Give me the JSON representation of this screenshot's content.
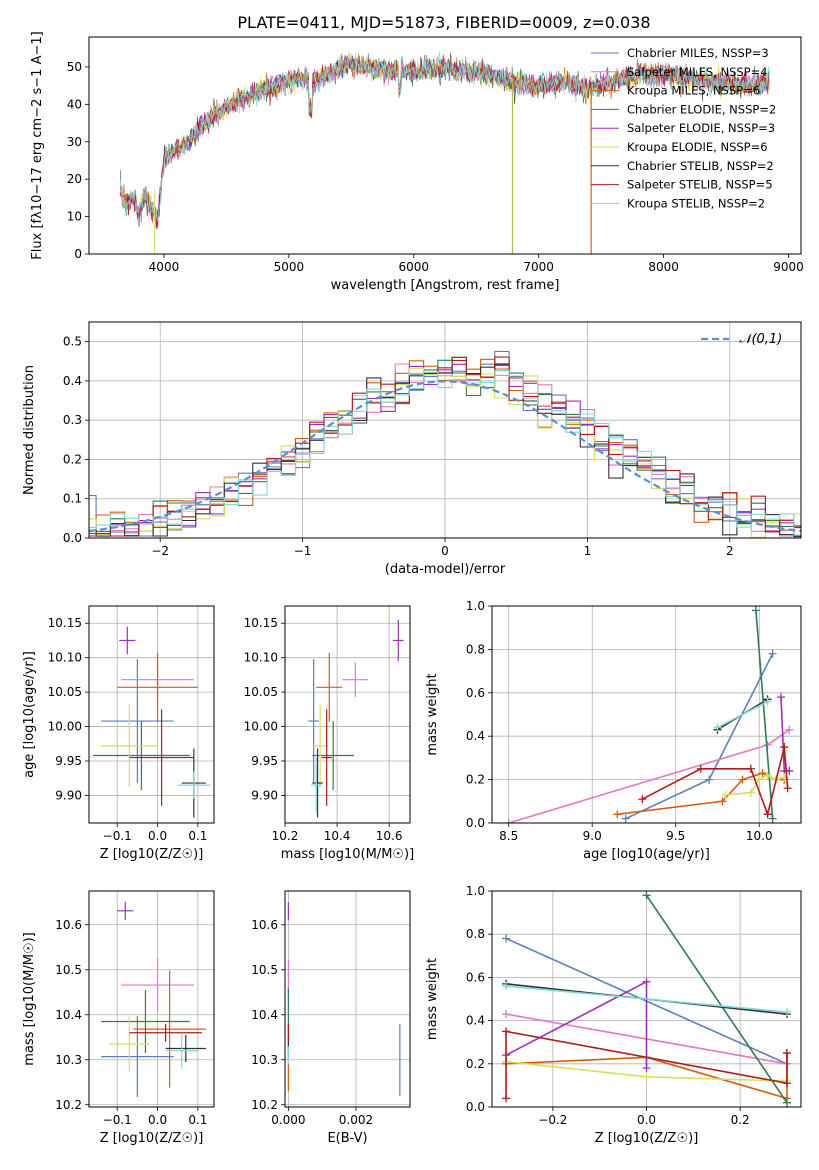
{
  "figure": {
    "title": "PLATE=0411, MJD=51873, FIBERID=0009, z=0.038"
  },
  "chart_data": [
    {
      "id": "spectrum",
      "type": "line",
      "title": "PLATE=0411, MJD=51873, FIBERID=0009, z=0.038",
      "xlabel": "wavelength [Angstrom, rest frame]",
      "ylabel": "Flux [fλ10−17 erg cm−2 s−1 A−1]",
      "xlim": [
        3400,
        9100
      ],
      "ylim": [
        0,
        58
      ],
      "xticks": [
        4000,
        5000,
        6000,
        7000,
        8000,
        9000
      ],
      "yticks": [
        0,
        10,
        20,
        30,
        40,
        50
      ],
      "grid": false,
      "legend": "top-right",
      "continuum": {
        "x": [
          3650,
          3700,
          3750,
          3800,
          3850,
          3900,
          3950,
          4000,
          4100,
          4200,
          4300,
          4400,
          4500,
          4600,
          4700,
          4800,
          4900,
          5000,
          5100,
          5200,
          5300,
          5400,
          5500,
          5600,
          5800,
          6000,
          6200,
          6400,
          6600,
          6800,
          7000,
          7200,
          7400,
          7600,
          7800,
          8000,
          8200,
          8400,
          8600,
          8850
        ],
        "y": [
          17,
          13,
          15,
          11,
          16,
          12,
          9,
          25,
          28,
          30,
          34,
          37,
          39,
          41,
          42,
          44,
          45,
          46,
          47,
          46,
          48,
          50,
          51,
          50,
          49,
          49,
          50,
          49,
          48,
          46,
          45,
          46,
          44,
          46,
          48,
          48,
          47,
          46,
          45,
          46
        ]
      },
      "series": [
        {
          "name": "Chabrier MILES, NSSP=3",
          "color": "#5b7fc4"
        },
        {
          "name": "Salpeter MILES, NSSP=4",
          "color": "#e377c2"
        },
        {
          "name": "Kroupa MILES, NSSP=6",
          "color": "#d35f0e"
        },
        {
          "name": "Chabrier ELODIE, NSSP=2",
          "color": "#2e7d4f"
        },
        {
          "name": "Salpeter ELODIE, NSSP=3",
          "color": "#9b30b8"
        },
        {
          "name": "Kroupa ELODIE, NSSP=6",
          "color": "#d4e157"
        },
        {
          "name": "Chabrier STELIB, NSSP=2",
          "color": "#333333"
        },
        {
          "name": "Salpeter STELIB, NSSP=5",
          "color": "#b31b1b"
        },
        {
          "name": "Kroupa STELIB, NSSP=2",
          "color": "#80d8d8"
        }
      ]
    },
    {
      "id": "residuals",
      "type": "histogram",
      "xlabel": "(data-model)/error",
      "ylabel": "Normed distribution",
      "xlim": [
        -2.5,
        2.5
      ],
      "ylim": [
        0,
        0.55
      ],
      "xticks": [
        -2,
        -1,
        0,
        1,
        2
      ],
      "yticks": [
        0.0,
        0.1,
        0.2,
        0.3,
        0.4,
        0.5
      ],
      "grid": true,
      "legend": "top-right",
      "reference": {
        "name": "𝒩(0,1)",
        "color": "#5b8ed6"
      },
      "bin_width": 0.1
    },
    {
      "id": "age_vs_Z",
      "type": "errorbar",
      "xlabel": "Z [log10(Z/Z☉)]",
      "ylabel": "age  [log10(age/yr)]",
      "xlim": [
        -0.17,
        0.14
      ],
      "ylim": [
        9.86,
        10.175
      ],
      "xticks": [
        -0.1,
        0.0,
        0.1
      ],
      "yticks": [
        9.9,
        9.95,
        10.0,
        10.05,
        10.1,
        10.15
      ],
      "grid": true,
      "points": [
        {
          "x": -0.05,
          "y": 10.008,
          "xerr": 0.09,
          "yerr": 0.09,
          "color": "#5b7fc4"
        },
        {
          "x": 0.0,
          "y": 10.068,
          "xerr": 0.09,
          "yerr": 0.025,
          "color": "#e377c2"
        },
        {
          "x": 0.0,
          "y": 10.057,
          "xerr": 0.1,
          "yerr": 0.05,
          "color": "#d35f0e"
        },
        {
          "x": -0.04,
          "y": 9.958,
          "xerr": 0.12,
          "yerr": 0.05,
          "color": "#2e7d4f"
        },
        {
          "x": -0.075,
          "y": 10.125,
          "xerr": 0.02,
          "yerr": 0.02,
          "color": "#9b30b8"
        },
        {
          "x": -0.07,
          "y": 9.972,
          "xerr": 0.07,
          "yerr": 0.06,
          "color": "#d4e157"
        },
        {
          "x": 0.09,
          "y": 9.918,
          "xerr": 0.03,
          "yerr": 0.05,
          "color": "#333333"
        },
        {
          "x": 0.01,
          "y": 9.955,
          "xerr": 0.08,
          "yerr": 0.07,
          "color": "#b31b1b"
        },
        {
          "x": 0.09,
          "y": 9.915,
          "xerr": 0.04,
          "yerr": 0.02,
          "color": "#80d8d8"
        }
      ]
    },
    {
      "id": "age_vs_mass",
      "type": "errorbar",
      "xlabel": "mass [log10(M/M☉)]",
      "ylabel": "",
      "xlim": [
        10.2,
        10.68
      ],
      "ylim": [
        9.86,
        10.175
      ],
      "xticks": [
        10.2,
        10.4,
        10.6
      ],
      "yticks": [
        9.9,
        9.95,
        10.0,
        10.05,
        10.1,
        10.15
      ],
      "grid": true,
      "points": [
        {
          "x": 10.31,
          "y": 10.008,
          "xerr": 0.02,
          "yerr": 0.09,
          "color": "#5b7fc4"
        },
        {
          "x": 10.47,
          "y": 10.068,
          "xerr": 0.05,
          "yerr": 0.025,
          "color": "#e377c2"
        },
        {
          "x": 10.37,
          "y": 10.057,
          "xerr": 0.05,
          "yerr": 0.05,
          "color": "#d35f0e"
        },
        {
          "x": 10.385,
          "y": 9.958,
          "xerr": 0.08,
          "yerr": 0.05,
          "color": "#2e7d4f"
        },
        {
          "x": 10.635,
          "y": 10.125,
          "xerr": 0.02,
          "yerr": 0.03,
          "color": "#9b30b8"
        },
        {
          "x": 10.335,
          "y": 9.972,
          "xerr": 0.03,
          "yerr": 0.06,
          "color": "#d4e157"
        },
        {
          "x": 10.325,
          "y": 9.918,
          "xerr": 0.02,
          "yerr": 0.05,
          "color": "#333333"
        },
        {
          "x": 10.36,
          "y": 9.955,
          "xerr": 0.02,
          "yerr": 0.07,
          "color": "#b31b1b"
        },
        {
          "x": 10.32,
          "y": 9.915,
          "xerr": 0.02,
          "yerr": 0.04,
          "color": "#80d8d8"
        }
      ]
    },
    {
      "id": "weight_vs_age",
      "type": "line",
      "xlabel": "age  [log10(age/yr)]",
      "ylabel": "mass weight",
      "xlim": [
        8.4,
        10.25
      ],
      "ylim": [
        0,
        1.0
      ],
      "xticks": [
        8.5,
        9.0,
        9.5,
        10.0
      ],
      "yticks": [
        0.0,
        0.2,
        0.4,
        0.6,
        0.8,
        1.0
      ],
      "grid": true,
      "series": [
        {
          "color": "#5b7fc4",
          "x": [
            9.2,
            9.7,
            10.08
          ],
          "y": [
            0.02,
            0.2,
            0.78
          ]
        },
        {
          "color": "#e377c2",
          "x": [
            8.5,
            10.05,
            10.18
          ],
          "y": [
            0.0,
            0.36,
            0.43
          ]
        },
        {
          "color": "#d35f0e",
          "x": [
            9.15,
            9.78,
            9.9,
            10.02,
            10.1,
            10.15
          ],
          "y": [
            0.04,
            0.1,
            0.2,
            0.23,
            0.2,
            0.2
          ]
        },
        {
          "color": "#2e7d4f",
          "x": [
            9.98,
            10.08
          ],
          "y": [
            0.98,
            0.02
          ]
        },
        {
          "color": "#9b30b8",
          "x": [
            10.13,
            10.15,
            10.18
          ],
          "y": [
            0.58,
            0.24,
            0.24
          ]
        },
        {
          "color": "#d4e157",
          "x": [
            9.8,
            9.95,
            10.0,
            10.05,
            10.1,
            10.15
          ],
          "y": [
            0.13,
            0.14,
            0.2,
            0.22,
            0.2,
            0.21
          ]
        },
        {
          "color": "#333333",
          "x": [
            9.75,
            10.05
          ],
          "y": [
            0.43,
            0.57
          ]
        },
        {
          "color": "#b31b1b",
          "x": [
            9.3,
            9.65,
            9.95,
            10.05,
            10.15,
            10.17
          ],
          "y": [
            0.11,
            0.25,
            0.25,
            0.04,
            0.35,
            0.16
          ]
        },
        {
          "color": "#80d8d8",
          "x": [
            9.75,
            10.05
          ],
          "y": [
            0.44,
            0.56
          ]
        }
      ]
    },
    {
      "id": "mass_vs_Z",
      "type": "errorbar",
      "xlabel": "Z [log10(Z/Z☉)]",
      "ylabel": "mass [log10(M/M☉)]",
      "xlim": [
        -0.17,
        0.14
      ],
      "ylim": [
        10.195,
        10.675
      ],
      "xticks": [
        -0.1,
        0.0,
        0.1
      ],
      "yticks": [
        10.2,
        10.3,
        10.4,
        10.5,
        10.6
      ],
      "grid": true,
      "points": [
        {
          "x": -0.05,
          "y": 10.307,
          "xerr": 0.09,
          "yerr": 0.09,
          "color": "#5b7fc4"
        },
        {
          "x": 0.0,
          "y": 10.466,
          "xerr": 0.09,
          "yerr": 0.06,
          "color": "#e377c2"
        },
        {
          "x": 0.03,
          "y": 10.368,
          "xerr": 0.09,
          "yerr": 0.13,
          "color": "#d35f0e"
        },
        {
          "x": -0.03,
          "y": 10.385,
          "xerr": 0.11,
          "yerr": 0.07,
          "color": "#2e7d4f"
        },
        {
          "x": -0.08,
          "y": 10.631,
          "xerr": 0.02,
          "yerr": 0.02,
          "color": "#9b30b8"
        },
        {
          "x": -0.07,
          "y": 10.335,
          "xerr": 0.05,
          "yerr": 0.06,
          "color": "#d4e157"
        },
        {
          "x": 0.07,
          "y": 10.325,
          "xerr": 0.05,
          "yerr": 0.03,
          "color": "#333333"
        },
        {
          "x": 0.02,
          "y": 10.36,
          "xerr": 0.09,
          "yerr": 0.02,
          "color": "#b31b1b"
        },
        {
          "x": 0.06,
          "y": 10.32,
          "xerr": 0.04,
          "yerr": 0.04,
          "color": "#80d8d8"
        }
      ]
    },
    {
      "id": "mass_vs_ebv",
      "type": "errorbar",
      "xlabel": "E(B-V)",
      "ylabel": "",
      "xlim": [
        -0.0001,
        0.0036
      ],
      "ylim": [
        10.195,
        10.675
      ],
      "xticks": [
        0.0,
        0.002
      ],
      "yticks": [
        10.2,
        10.3,
        10.4,
        10.5,
        10.6
      ],
      "grid": true,
      "points": [
        {
          "x": 0.0033,
          "y": 10.3,
          "xerr": 0,
          "yerr": 0.08,
          "color": "#5b7fc4"
        },
        {
          "x": 0.0,
          "y": 10.48,
          "xerr": 0,
          "yerr": 0.04,
          "color": "#e377c2"
        },
        {
          "x": 0.0,
          "y": 10.27,
          "xerr": 0,
          "yerr": 0.04,
          "color": "#d35f0e"
        },
        {
          "x": 0.0,
          "y": 10.41,
          "xerr": 0,
          "yerr": 0.05,
          "color": "#2e7d4f"
        },
        {
          "x": 0.0,
          "y": 10.63,
          "xerr": 0,
          "yerr": 0.02,
          "color": "#9b30b8"
        },
        {
          "x": 0.0,
          "y": 10.33,
          "xerr": 0,
          "yerr": 0.03,
          "color": "#d4e157"
        },
        {
          "x": 0.0,
          "y": 10.33,
          "xerr": 0,
          "yerr": 0.02,
          "color": "#333333"
        },
        {
          "x": 0.0,
          "y": 10.36,
          "xerr": 0,
          "yerr": 0.02,
          "color": "#b31b1b"
        },
        {
          "x": 0.0,
          "y": 10.31,
          "xerr": 0,
          "yerr": 0.02,
          "color": "#80d8d8"
        }
      ]
    },
    {
      "id": "weight_vs_Z",
      "type": "line",
      "xlabel": "Z [log10(Z/Z☉)]",
      "ylabel": "mass weight",
      "xlim": [
        -0.33,
        0.33
      ],
      "ylim": [
        0,
        1.0
      ],
      "xticks": [
        -0.2,
        0.0,
        0.2
      ],
      "yticks": [
        0.0,
        0.2,
        0.4,
        0.6,
        0.8,
        1.0
      ],
      "grid": true,
      "series": [
        {
          "color": "#5b7fc4",
          "x": [
            -0.3,
            0.3
          ],
          "y": [
            0.78,
            0.2
          ]
        },
        {
          "color": "#e377c2",
          "x": [
            -0.3,
            0.3
          ],
          "y": [
            0.43,
            0.2
          ]
        },
        {
          "color": "#d35f0e",
          "x": [
            -0.3,
            0.0,
            0.3,
            0.3
          ],
          "y": [
            0.2,
            0.23,
            0.04,
            0.25
          ]
        },
        {
          "color": "#2e7d4f",
          "x": [
            0.0,
            0.3
          ],
          "y": [
            0.98,
            0.02
          ]
        },
        {
          "color": "#9b30b8",
          "x": [
            -0.3,
            0.0,
            0.0
          ],
          "y": [
            0.24,
            0.58,
            0.18
          ]
        },
        {
          "color": "#d4e157",
          "x": [
            -0.3,
            0.0,
            0.3
          ],
          "y": [
            0.21,
            0.14,
            0.12
          ]
        },
        {
          "color": "#333333",
          "x": [
            -0.3,
            0.3
          ],
          "y": [
            0.57,
            0.43
          ]
        },
        {
          "color": "#b31b1b",
          "x": [
            -0.3,
            -0.3,
            0.3,
            0.3
          ],
          "y": [
            0.04,
            0.35,
            0.11,
            0.25
          ]
        },
        {
          "color": "#80d8d8",
          "x": [
            -0.3,
            0.3
          ],
          "y": [
            0.56,
            0.44
          ]
        }
      ]
    }
  ]
}
